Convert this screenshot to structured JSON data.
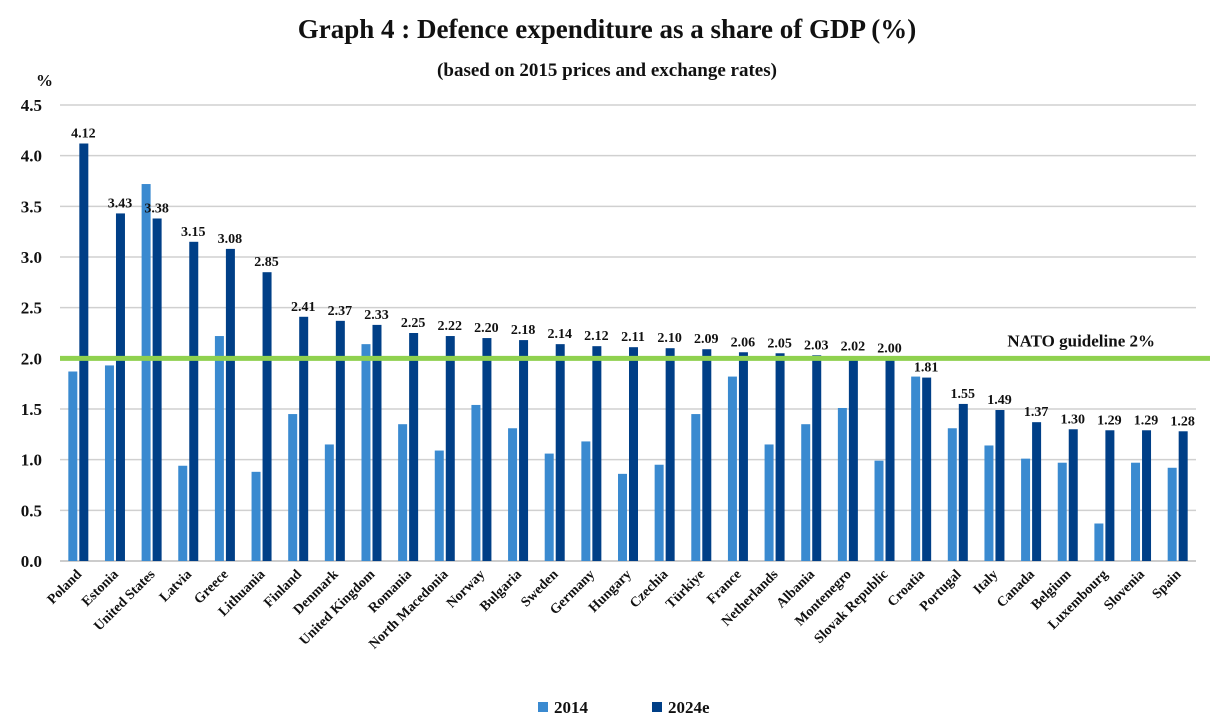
{
  "chart_data": {
    "type": "bar",
    "title": "Graph 4 : Defence expenditure as a share of GDP (%)",
    "subtitle": "(based on 2015 prices and exchange rates)",
    "ylabel": "%",
    "ylim": [
      0,
      4.5
    ],
    "yticks": [
      "0.0",
      "0.5",
      "1.0",
      "1.5",
      "2.0",
      "2.5",
      "3.0",
      "3.5",
      "4.0",
      "4.5"
    ],
    "grid": true,
    "legend": "bottom",
    "categories": [
      "Poland",
      "Estonia",
      "United States",
      "Latvia",
      "Greece",
      "Lithuania",
      "Finland",
      "Denmark",
      "United Kingdom",
      "Romania",
      "North Macedonia",
      "Norway",
      "Bulgaria",
      "Sweden",
      "Germany",
      "Hungary",
      "Czechia",
      "Türkiye",
      "France",
      "Netherlands",
      "Albania",
      "Montenegro",
      "Slovak Republic",
      "Croatia",
      "Portugal",
      "Italy",
      "Canada",
      "Belgium",
      "Luxembourg",
      "Slovenia",
      "Spain"
    ],
    "series": [
      {
        "name": "2014",
        "color": "#3a8ad0",
        "values": [
          1.87,
          1.93,
          3.72,
          0.94,
          2.22,
          0.88,
          1.45,
          1.15,
          2.14,
          1.35,
          1.09,
          1.54,
          1.31,
          1.06,
          1.18,
          0.86,
          0.95,
          1.45,
          1.82,
          1.15,
          1.35,
          1.51,
          0.99,
          1.82,
          1.31,
          1.14,
          1.01,
          0.97,
          0.37,
          0.97,
          0.92
        ]
      },
      {
        "name": "2024e",
        "color": "#003f87",
        "values": [
          4.12,
          3.43,
          3.38,
          3.15,
          3.08,
          2.85,
          2.41,
          2.37,
          2.33,
          2.25,
          2.22,
          2.2,
          2.18,
          2.14,
          2.12,
          2.11,
          2.1,
          2.09,
          2.06,
          2.05,
          2.03,
          2.02,
          2.0,
          1.81,
          1.55,
          1.49,
          1.37,
          1.3,
          1.29,
          1.29,
          1.28
        ],
        "labels": [
          "4.12",
          "3.43",
          "3.38",
          "3.15",
          "3.08",
          "2.85",
          "2.41",
          "2.37",
          "2.33",
          "2.25",
          "2.22",
          "2.20",
          "2.18",
          "2.14",
          "2.12",
          "2.11",
          "2.10",
          "2.09",
          "2.06",
          "2.05",
          "2.03",
          "2.02",
          "2.00",
          "1.81",
          "1.55",
          "1.49",
          "1.37",
          "1.30",
          "1.29",
          "1.29",
          "1.28"
        ]
      }
    ],
    "reference_line": {
      "value": 2.0,
      "label": "NATO guideline 2%",
      "color": "#8fd14f"
    }
  }
}
